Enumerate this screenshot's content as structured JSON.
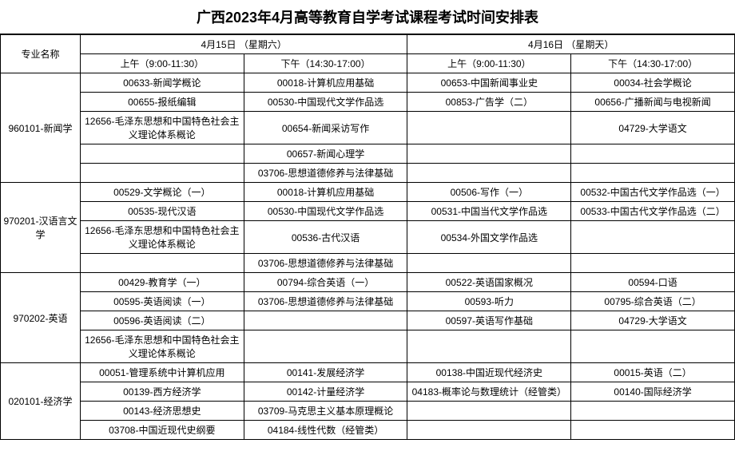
{
  "title": "广西2023年4月高等教育自学考试课程考试时间安排表",
  "headers": {
    "major": "专业名称",
    "day1": "4月15日 （星期六）",
    "day2": "4月16日 （星期天）",
    "morning": "上午（9:00-11:30）",
    "afternoon": "下午（14:30-17:00）"
  },
  "majors": [
    {
      "name": "960101-新闻学",
      "rows": [
        [
          "00633-新闻学概论",
          "00018-计算机应用基础",
          "00653-中国新闻事业史",
          "00034-社会学概论"
        ],
        [
          "00655-报纸编辑",
          "00530-中国现代文学作品选",
          "00853-广告学（二）",
          "00656-广播新闻与电视新闻"
        ],
        [
          "12656-毛泽东思想和中国特色社会主义理论体系概论",
          "00654-新闻采访写作",
          "",
          "04729-大学语文"
        ],
        [
          "",
          "00657-新闻心理学",
          "",
          ""
        ],
        [
          "",
          "03706-思想道德修养与法律基础",
          "",
          ""
        ]
      ]
    },
    {
      "name": "970201-汉语言文学",
      "rows": [
        [
          "00529-文学概论（一）",
          "00018-计算机应用基础",
          "00506-写作（一）",
          "00532-中国古代文学作品选（一）"
        ],
        [
          "00535-现代汉语",
          "00530-中国现代文学作品选",
          "00531-中国当代文学作品选",
          "00533-中国古代文学作品选（二）"
        ],
        [
          "12656-毛泽东思想和中国特色社会主义理论体系概论",
          "00536-古代汉语",
          "00534-外国文学作品选",
          ""
        ],
        [
          "",
          "03706-思想道德修养与法律基础",
          "",
          ""
        ]
      ]
    },
    {
      "name": "970202-英语",
      "rows": [
        [
          "00429-教育学（一）",
          "00794-综合英语（一）",
          "00522-英语国家概况",
          "00594-口语"
        ],
        [
          "00595-英语阅读（一）",
          "03706-思想道德修养与法律基础",
          "00593-听力",
          "00795-综合英语（二）"
        ],
        [
          "00596-英语阅读（二）",
          "",
          "00597-英语写作基础",
          "04729-大学语文"
        ],
        [
          "12656-毛泽东思想和中国特色社会主义理论体系概论",
          "",
          "",
          ""
        ]
      ]
    },
    {
      "name": "020101-经济学",
      "rows": [
        [
          "00051-管理系统中计算机应用",
          "00141-发展经济学",
          "00138-中国近现代经济史",
          "00015-英语（二）"
        ],
        [
          "00139-西方经济学",
          "00142-计量经济学",
          "04183-概率论与数理统计（经管类）",
          "00140-国际经济学"
        ],
        [
          "00143-经济思想史",
          "03709-马克思主义基本原理概论",
          "",
          ""
        ],
        [
          "03708-中国近现代史纲要",
          "04184-线性代数（经管类）",
          "",
          ""
        ]
      ]
    }
  ]
}
